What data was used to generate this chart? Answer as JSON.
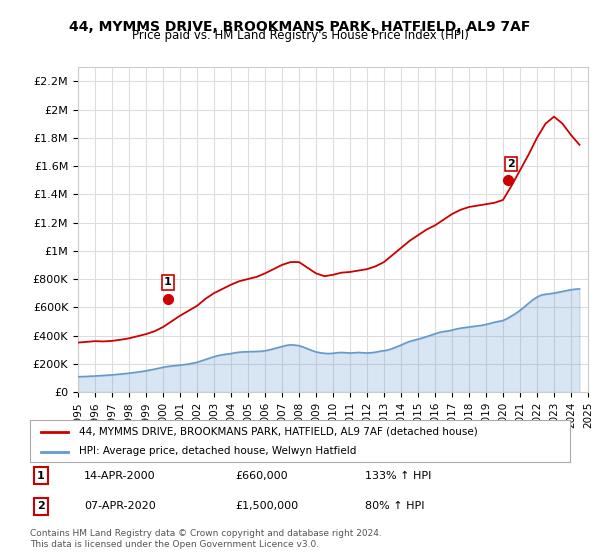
{
  "title": "44, MYMMS DRIVE, BROOKMANS PARK, HATFIELD, AL9 7AF",
  "subtitle": "Price paid vs. HM Land Registry's House Price Index (HPI)",
  "legend_line1": "44, MYMMS DRIVE, BROOKMANS PARK, HATFIELD, AL9 7AF (detached house)",
  "legend_line2": "HPI: Average price, detached house, Welwyn Hatfield",
  "annotation1_label": "1",
  "annotation1_date": "14-APR-2000",
  "annotation1_price": "£660,000",
  "annotation1_hpi": "133% ↑ HPI",
  "annotation2_label": "2",
  "annotation2_date": "07-APR-2020",
  "annotation2_price": "£1,500,000",
  "annotation2_hpi": "80% ↑ HPI",
  "footer": "Contains HM Land Registry data © Crown copyright and database right 2024.\nThis data is licensed under the Open Government Licence v3.0.",
  "red_line_color": "#cc0000",
  "blue_line_color": "#6699cc",
  "background_color": "#ffffff",
  "grid_color": "#dddddd",
  "ylim": [
    0,
    2300000
  ],
  "yticks": [
    0,
    200000,
    400000,
    600000,
    800000,
    1000000,
    1200000,
    1400000,
    1600000,
    1800000,
    2000000,
    2200000
  ],
  "ytick_labels": [
    "£0",
    "£200K",
    "£400K",
    "£600K",
    "£800K",
    "£1M",
    "£1.2M",
    "£1.4M",
    "£1.6M",
    "£1.8M",
    "£2M",
    "£2.2M"
  ],
  "hpi_x": [
    1995.0,
    1995.25,
    1995.5,
    1995.75,
    1996.0,
    1996.25,
    1996.5,
    1996.75,
    1997.0,
    1997.25,
    1997.5,
    1997.75,
    1998.0,
    1998.25,
    1998.5,
    1998.75,
    1999.0,
    1999.25,
    1999.5,
    1999.75,
    2000.0,
    2000.25,
    2000.5,
    2000.75,
    2001.0,
    2001.25,
    2001.5,
    2001.75,
    2002.0,
    2002.25,
    2002.5,
    2002.75,
    2003.0,
    2003.25,
    2003.5,
    2003.75,
    2004.0,
    2004.25,
    2004.5,
    2004.75,
    2005.0,
    2005.25,
    2005.5,
    2005.75,
    2006.0,
    2006.25,
    2006.5,
    2006.75,
    2007.0,
    2007.25,
    2007.5,
    2007.75,
    2008.0,
    2008.25,
    2008.5,
    2008.75,
    2009.0,
    2009.25,
    2009.5,
    2009.75,
    2010.0,
    2010.25,
    2010.5,
    2010.75,
    2011.0,
    2011.25,
    2011.5,
    2011.75,
    2012.0,
    2012.25,
    2012.5,
    2012.75,
    2013.0,
    2013.25,
    2013.5,
    2013.75,
    2014.0,
    2014.25,
    2014.5,
    2014.75,
    2015.0,
    2015.25,
    2015.5,
    2015.75,
    2016.0,
    2016.25,
    2016.5,
    2016.75,
    2017.0,
    2017.25,
    2017.5,
    2017.75,
    2018.0,
    2018.25,
    2018.5,
    2018.75,
    2019.0,
    2019.25,
    2019.5,
    2019.75,
    2020.0,
    2020.25,
    2020.5,
    2020.75,
    2021.0,
    2021.25,
    2021.5,
    2021.75,
    2022.0,
    2022.25,
    2022.5,
    2022.75,
    2023.0,
    2023.25,
    2023.5,
    2023.75,
    2024.0,
    2024.25,
    2024.5
  ],
  "hpi_y": [
    108000,
    109000,
    110000,
    112000,
    113000,
    115000,
    117000,
    119000,
    121000,
    124000,
    127000,
    130000,
    133000,
    137000,
    141000,
    145000,
    150000,
    156000,
    162000,
    168000,
    175000,
    180000,
    184000,
    187000,
    190000,
    194000,
    198000,
    204000,
    210000,
    220000,
    230000,
    240000,
    250000,
    258000,
    264000,
    268000,
    272000,
    278000,
    282000,
    284000,
    285000,
    286000,
    287000,
    288000,
    292000,
    298000,
    306000,
    314000,
    322000,
    330000,
    334000,
    332000,
    328000,
    318000,
    306000,
    294000,
    284000,
    278000,
    274000,
    272000,
    274000,
    278000,
    280000,
    278000,
    276000,
    278000,
    280000,
    278000,
    276000,
    278000,
    282000,
    288000,
    292000,
    298000,
    308000,
    320000,
    332000,
    346000,
    358000,
    366000,
    374000,
    382000,
    392000,
    402000,
    412000,
    422000,
    428000,
    432000,
    438000,
    446000,
    452000,
    456000,
    460000,
    464000,
    468000,
    472000,
    478000,
    486000,
    494000,
    500000,
    506000,
    520000,
    538000,
    556000,
    578000,
    602000,
    628000,
    652000,
    672000,
    686000,
    692000,
    696000,
    700000,
    706000,
    712000,
    718000,
    724000,
    728000,
    730000
  ],
  "red_x": [
    1995.0,
    1995.5,
    1996.0,
    1996.5,
    1997.0,
    1997.5,
    1998.0,
    1998.5,
    1999.0,
    1999.5,
    2000.0,
    2000.5,
    2001.0,
    2001.5,
    2002.0,
    2002.5,
    2003.0,
    2003.5,
    2004.0,
    2004.5,
    2005.0,
    2005.5,
    2006.0,
    2006.5,
    2007.0,
    2007.5,
    2008.0,
    2008.5,
    2009.0,
    2009.5,
    2010.0,
    2010.5,
    2011.0,
    2011.5,
    2012.0,
    2012.5,
    2013.0,
    2013.5,
    2014.0,
    2014.5,
    2015.0,
    2015.5,
    2016.0,
    2016.5,
    2017.0,
    2017.5,
    2018.0,
    2018.5,
    2019.0,
    2019.5,
    2020.0,
    2020.5,
    2021.0,
    2021.5,
    2022.0,
    2022.5,
    2023.0,
    2023.5,
    2024.0,
    2024.5
  ],
  "red_y": [
    350000,
    355000,
    360000,
    358000,
    362000,
    370000,
    380000,
    395000,
    410000,
    430000,
    460000,
    500000,
    540000,
    575000,
    610000,
    660000,
    700000,
    730000,
    760000,
    785000,
    800000,
    815000,
    840000,
    870000,
    900000,
    920000,
    920000,
    880000,
    840000,
    820000,
    830000,
    845000,
    850000,
    860000,
    870000,
    890000,
    920000,
    970000,
    1020000,
    1070000,
    1110000,
    1150000,
    1180000,
    1220000,
    1260000,
    1290000,
    1310000,
    1320000,
    1330000,
    1340000,
    1360000,
    1460000,
    1570000,
    1680000,
    1800000,
    1900000,
    1950000,
    1900000,
    1820000,
    1750000
  ],
  "point1_x": 2000.29,
  "point1_y": 660000,
  "point2_x": 2020.27,
  "point2_y": 1500000,
  "xlim": [
    1995.0,
    2025.0
  ],
  "xticks": [
    1995,
    1996,
    1997,
    1998,
    1999,
    2000,
    2001,
    2002,
    2003,
    2004,
    2005,
    2006,
    2007,
    2008,
    2009,
    2010,
    2011,
    2012,
    2013,
    2014,
    2015,
    2016,
    2017,
    2018,
    2019,
    2020,
    2021,
    2022,
    2023,
    2024,
    2025
  ]
}
